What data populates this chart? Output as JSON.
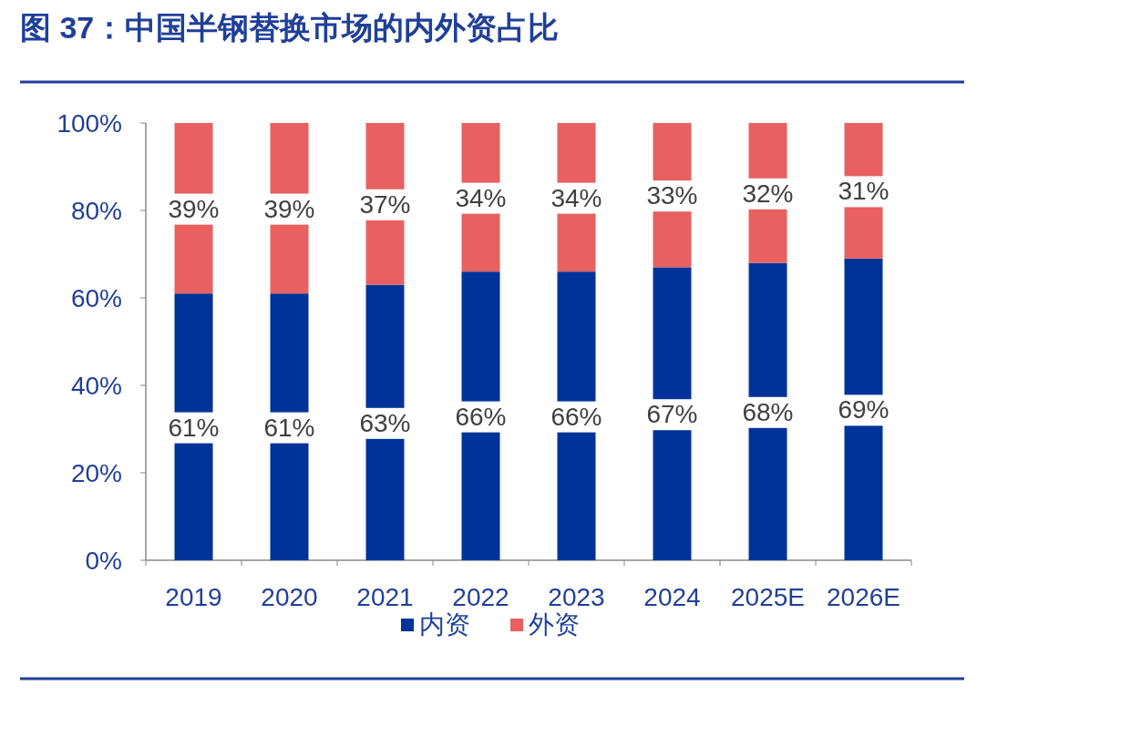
{
  "chart_data": {
    "type": "bar",
    "title": "图 37：中国半钢替换市场的内外资占比",
    "stacked": true,
    "categories": [
      "2019",
      "2020",
      "2021",
      "2022",
      "2023",
      "2024",
      "2025E",
      "2026E"
    ],
    "series": [
      {
        "name": "内资",
        "color": "#003399",
        "values": [
          61,
          61,
          63,
          66,
          66,
          67,
          68,
          69
        ],
        "value_labels": [
          "61%",
          "61%",
          "63%",
          "66%",
          "66%",
          "67%",
          "68%",
          "69%"
        ]
      },
      {
        "name": "外资",
        "color": "#e86060",
        "values": [
          39,
          39,
          37,
          34,
          34,
          33,
          32,
          31
        ],
        "value_labels": [
          "39%",
          "39%",
          "37%",
          "34%",
          "34%",
          "33%",
          "32%",
          "31%"
        ]
      }
    ],
    "ylim": [
      0,
      100
    ],
    "yticks": [
      {
        "value": 0,
        "label": "0%"
      },
      {
        "value": 20,
        "label": "20%"
      },
      {
        "value": 40,
        "label": "40%"
      },
      {
        "value": 60,
        "label": "60%"
      },
      {
        "value": 80,
        "label": "80%"
      },
      {
        "value": 100,
        "label": "100%"
      }
    ],
    "grid": false,
    "legend": "bottom"
  }
}
